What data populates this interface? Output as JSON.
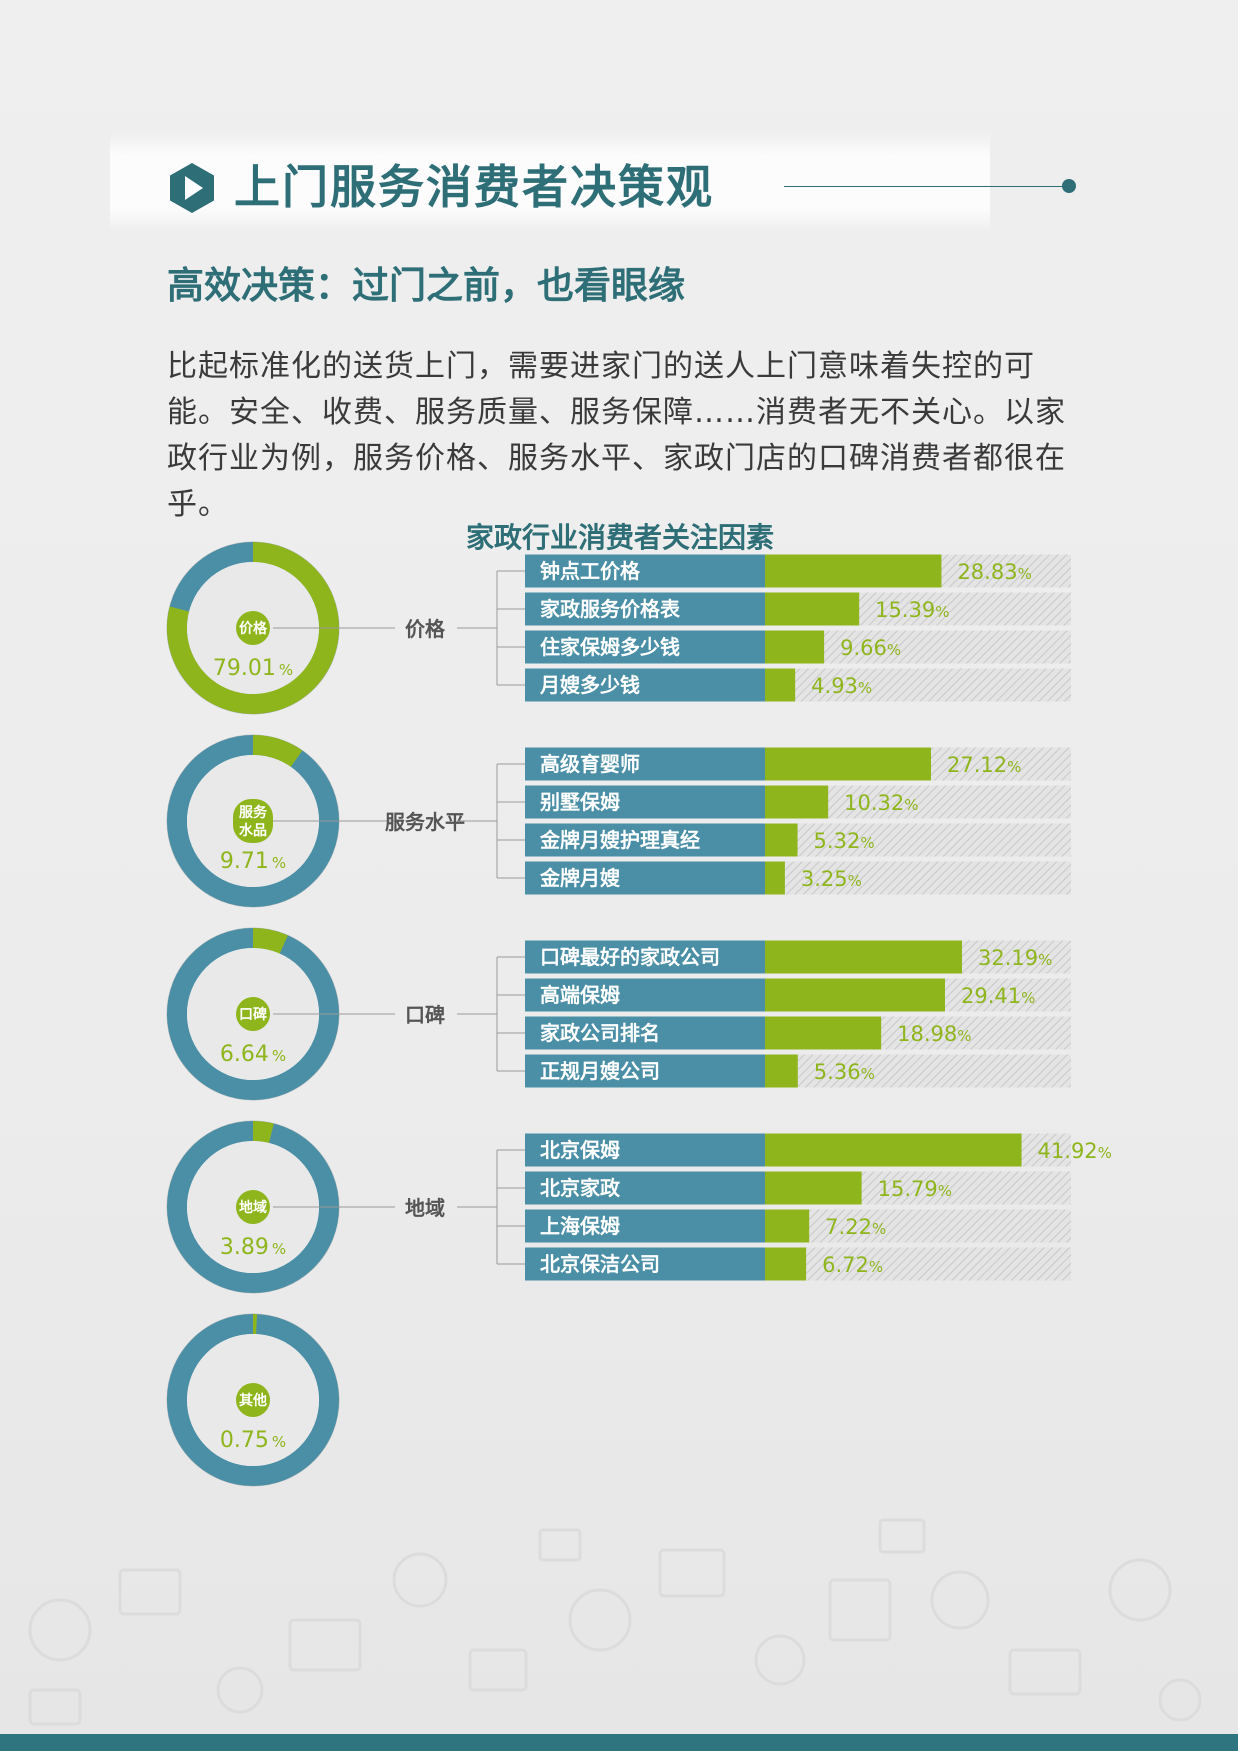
{
  "header": {
    "title": "上门服务消费者决策观",
    "subtitle": "高效决策：过门之前，也看眼缘",
    "paragraph": "比起标准化的送货上门，需要进家门的送人上门意味着失控的可能。安全、收费、服务质量、服务保障……消费者无不关心。以家政行业为例，服务价格、服务水平、家政门店的口碑消费者都很在乎。"
  },
  "colors": {
    "teal": "#2e6e77",
    "bar_blue": "#4a8fa6",
    "ring_blue": "#4a8fa6",
    "green": "#8fb51c",
    "track": "#d9d9d9"
  },
  "icons": [
    "play-icon"
  ],
  "chart_data": {
    "type": "bar",
    "title": "家政行业消费者关注因素",
    "groups": [
      {
        "name": "价格",
        "ring_label": "价格",
        "share": 79.01,
        "share_label": "79.01",
        "categories": [
          "钟点工价格",
          "家政服务价格表",
          "住家保姆多少钱",
          "月嫂多少钱"
        ],
        "values": [
          28.83,
          15.39,
          9.66,
          4.93
        ],
        "value_labels": [
          "28.83",
          "15.39",
          "9.66",
          "4.93"
        ]
      },
      {
        "name": "服务水平",
        "ring_label": "服务\n水品",
        "share": 9.71,
        "share_label": "9.71",
        "categories": [
          "高级育婴师",
          "别墅保姆",
          "金牌月嫂护理真经",
          "金牌月嫂"
        ],
        "values": [
          27.12,
          10.32,
          5.32,
          3.25
        ],
        "value_labels": [
          "27.12",
          "10.32",
          "5.32",
          "3.25"
        ]
      },
      {
        "name": "口碑",
        "ring_label": "口碑",
        "share": 6.64,
        "share_label": "6.64",
        "categories": [
          "口碑最好的家政公司",
          "高端保姆",
          "家政公司排名",
          "正规月嫂公司"
        ],
        "values": [
          32.19,
          29.41,
          18.98,
          5.36
        ],
        "value_labels": [
          "32.19",
          "29.41",
          "18.98",
          "5.36"
        ]
      },
      {
        "name": "地域",
        "ring_label": "地域",
        "share": 3.89,
        "share_label": "3.89",
        "categories": [
          "北京保姆",
          "北京家政",
          "上海保姆",
          "北京保洁公司"
        ],
        "values": [
          41.92,
          15.79,
          7.22,
          6.72
        ],
        "value_labels": [
          "41.92",
          "15.79",
          "7.22",
          "6.72"
        ]
      },
      {
        "name": "其他",
        "ring_label": "其他",
        "share": 0.75,
        "share_label": "0.75",
        "categories": [],
        "values": [],
        "value_labels": []
      }
    ],
    "unit": "%",
    "xlim": [
      0,
      50
    ]
  }
}
